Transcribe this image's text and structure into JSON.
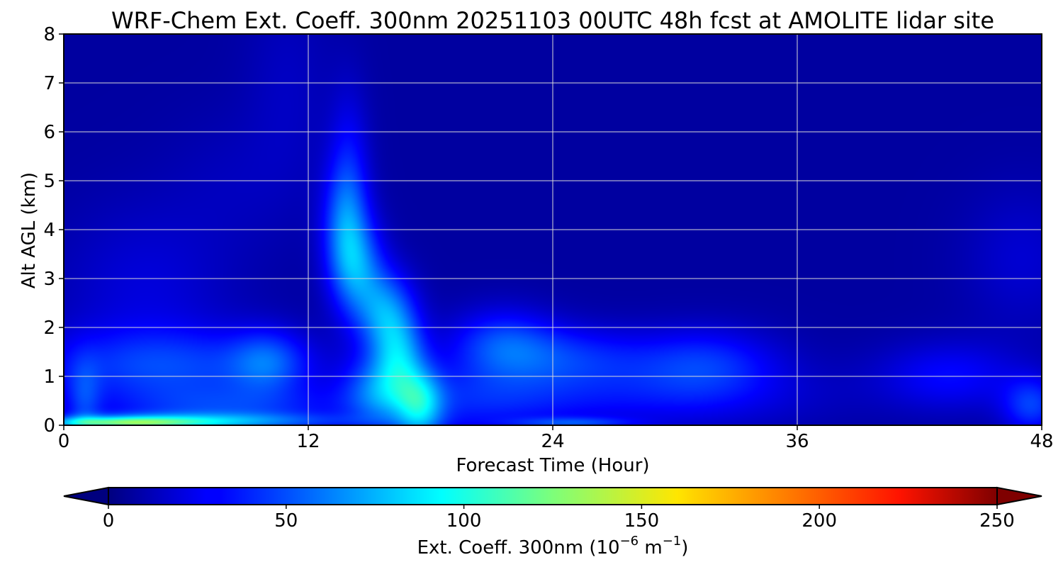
{
  "chart_data": {
    "type": "heatmap",
    "title": "WRF-Chem Ext. Coeff. 300nm  20251103 00UTC 48h fcst at AMOLITE lidar site",
    "xlabel": "Forecast Time (Hour)",
    "ylabel": "Alt AGL (km)",
    "xlim": [
      0,
      48
    ],
    "ylim": [
      0,
      8
    ],
    "x_ticks": [
      0,
      12,
      24,
      36,
      48
    ],
    "y_ticks": [
      0,
      1,
      2,
      3,
      4,
      5,
      6,
      7,
      8
    ],
    "grid": true,
    "colorbar": {
      "label_main": "Ext. Coeff. 300nm  (10",
      "label_exp1": "−6",
      "label_mid": " m",
      "label_exp2": "−1",
      "label_end": ")",
      "range": [
        0,
        250
      ],
      "ticks": [
        0,
        50,
        100,
        150,
        200,
        250
      ],
      "extend": "both",
      "colormap": "jet",
      "orientation": "horizontal"
    },
    "colors": {
      "background_field": "#00007f",
      "low": "#00007f",
      "mid": "#00ffff",
      "high": "#7f0000"
    },
    "field": {
      "note_units": "Ext. Coeff. 300nm (10^-6 m^-1)",
      "base": 8,
      "features": [
        {
          "t": 3,
          "z": 0.05,
          "st": 2.5,
          "sz": 0.08,
          "v": 70
        },
        {
          "t": 6,
          "z": 0.08,
          "st": 5,
          "sz": 0.12,
          "v": 45
        },
        {
          "t": 1,
          "z": 0.5,
          "st": 0.6,
          "sz": 0.6,
          "v": 25
        },
        {
          "t": 5,
          "z": 1.2,
          "st": 4.5,
          "sz": 0.55,
          "v": 36
        },
        {
          "t": 10,
          "z": 1.3,
          "st": 1.3,
          "sz": 0.45,
          "v": 34
        },
        {
          "t": 8,
          "z": 0.3,
          "st": 4,
          "sz": 0.35,
          "v": 30
        },
        {
          "t": 4,
          "z": 2.8,
          "st": 3,
          "sz": 1.2,
          "v": 14
        },
        {
          "t": 13.8,
          "z": 4.0,
          "st": 0.8,
          "sz": 0.9,
          "v": 40
        },
        {
          "t": 14.0,
          "z": 5.2,
          "st": 0.7,
          "sz": 1.2,
          "v": 22
        },
        {
          "t": 14.5,
          "z": 3.2,
          "st": 0.9,
          "sz": 0.7,
          "v": 42
        },
        {
          "t": 15.8,
          "z": 2.3,
          "st": 1.0,
          "sz": 0.6,
          "v": 52
        },
        {
          "t": 16.5,
          "z": 1.4,
          "st": 0.9,
          "sz": 0.6,
          "v": 50
        },
        {
          "t": 17.5,
          "z": 0.4,
          "st": 0.8,
          "sz": 0.5,
          "v": 55
        },
        {
          "t": 15.5,
          "z": 0.7,
          "st": 1.2,
          "sz": 0.5,
          "v": 40
        },
        {
          "t": 11,
          "z": 7.0,
          "st": 1.5,
          "sz": 1.5,
          "v": 8
        },
        {
          "t": 21.5,
          "z": 1.7,
          "st": 1.8,
          "sz": 0.5,
          "v": 32
        },
        {
          "t": 24.5,
          "z": 1.4,
          "st": 3,
          "sz": 0.45,
          "v": 30
        },
        {
          "t": 20,
          "z": 0.5,
          "st": 4,
          "sz": 0.5,
          "v": 28
        },
        {
          "t": 25,
          "z": 0.05,
          "st": 2,
          "sz": 0.08,
          "v": 30
        },
        {
          "t": 31.5,
          "z": 1.3,
          "st": 2.5,
          "sz": 0.5,
          "v": 30
        },
        {
          "t": 30,
          "z": 0.6,
          "st": 5,
          "sz": 0.5,
          "v": 20
        },
        {
          "t": 43.5,
          "z": 1.0,
          "st": 2.5,
          "sz": 0.5,
          "v": 24
        },
        {
          "t": 47.5,
          "z": 0.4,
          "st": 1.0,
          "sz": 0.4,
          "v": 36
        },
        {
          "t": 47,
          "z": 3.4,
          "st": 2,
          "sz": 1.0,
          "v": 12
        },
        {
          "t": 8.5,
          "z": 5.0,
          "st": 2.5,
          "sz": 1.0,
          "v": 6
        }
      ]
    }
  }
}
